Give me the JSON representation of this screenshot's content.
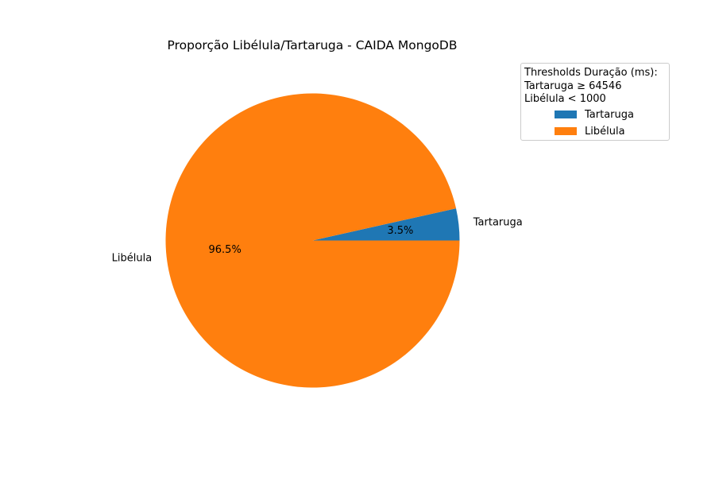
{
  "chart_data": {
    "type": "pie",
    "title": "Proporção Libélula/Tartaruga - CAIDA MongoDB",
    "slices": [
      {
        "label": "Tartaruga",
        "value": 3.5,
        "pct_label": "3.5%",
        "color": "#1f77b4"
      },
      {
        "label": "Libélula",
        "value": 96.5,
        "pct_label": "96.5%",
        "color": "#ff7f0e"
      }
    ],
    "start_angle_deg": 0,
    "direction": "counterclockwise",
    "legend": {
      "placement": "top-right",
      "title_lines": [
        "Thresholds Duração (ms):",
        "Tartaruga ≥ 64546",
        "Libélula < 1000"
      ],
      "entries": [
        "Tartaruga",
        "Libélula"
      ]
    }
  }
}
